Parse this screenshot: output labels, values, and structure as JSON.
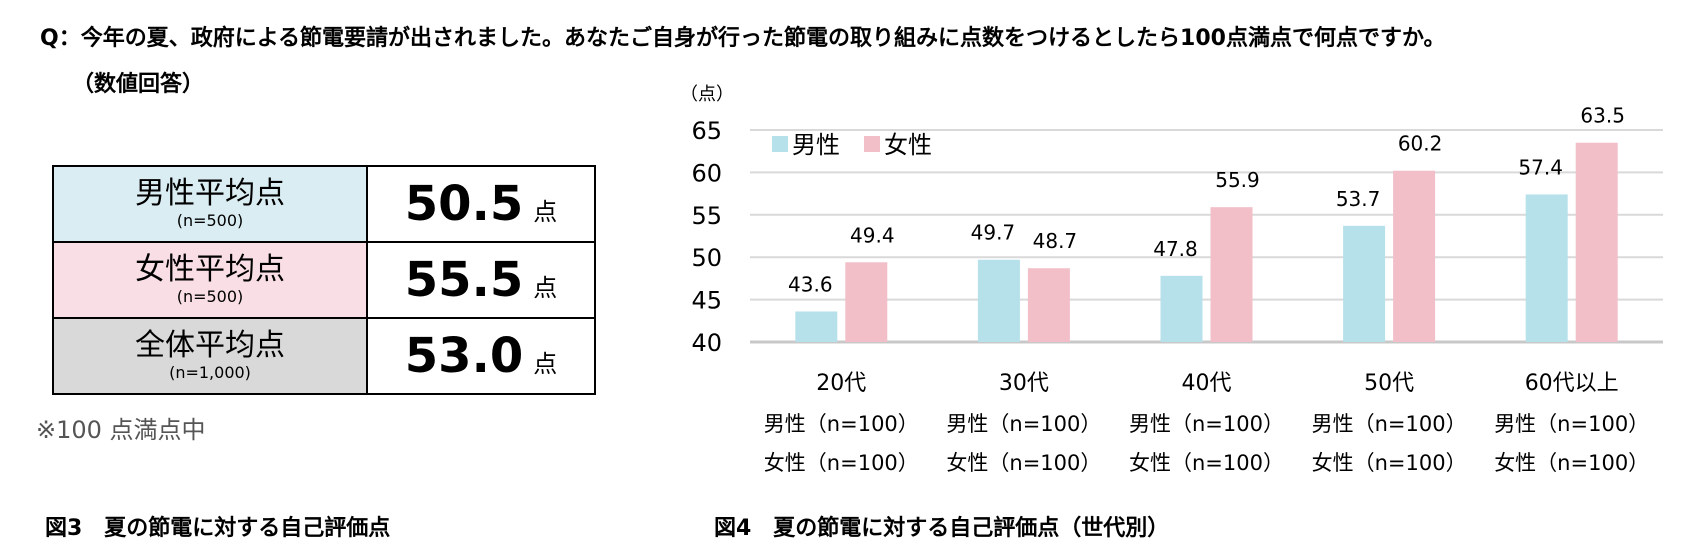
{
  "question": {
    "line1": "Q：今年の夏、政府による節電要請が出されました。あなたご自身が行った節電の取り組みに点数をつけるとしたら100点満点で何点ですか。",
    "line2": "（数値回答）"
  },
  "summary_table": {
    "rows": [
      {
        "label": "男性平均点",
        "n": "(n=500)",
        "value": "50.5",
        "unit": "点"
      },
      {
        "label": "女性平均点",
        "n": "(n=500)",
        "value": "55.5",
        "unit": "点"
      },
      {
        "label": "全体平均点",
        "n": "(n=1,000)",
        "value": "53.0",
        "unit": "点"
      }
    ]
  },
  "note": "※100 点満点中",
  "caption_fig3": "図3　夏の節電に対する自己評価点",
  "caption_fig4": "図4　夏の節電に対する自己評価点（世代別）",
  "colors": {
    "male": "#b6e0ea",
    "female": "#f2bfc9"
  },
  "chart_data": {
    "type": "bar",
    "title": "図4　夏の節電に対する自己評価点（世代別）",
    "ylabel": "（点）",
    "ylim": [
      40,
      65
    ],
    "yticks": [
      "40",
      "45",
      "50",
      "55",
      "60",
      "65"
    ],
    "grid": true,
    "legend_position": "top-left",
    "categories": [
      "20代",
      "30代",
      "40代",
      "50代",
      "60代以上"
    ],
    "category_sample_male": [
      "男性（n=100）",
      "男性（n=100）",
      "男性（n=100）",
      "男性（n=100）",
      "男性（n=100）"
    ],
    "category_sample_female": [
      "女性（n=100）",
      "女性（n=100）",
      "女性（n=100）",
      "女性（n=100）",
      "女性（n=100）"
    ],
    "series": [
      {
        "name": "男性",
        "values": [
          43.6,
          49.7,
          47.8,
          53.7,
          57.4
        ],
        "labels": [
          "43.6",
          "49.7",
          "47.8",
          "53.7",
          "57.4"
        ]
      },
      {
        "name": "女性",
        "values": [
          49.4,
          48.7,
          55.9,
          60.2,
          63.5
        ],
        "labels": [
          "49.4",
          "48.7",
          "55.9",
          "60.2",
          "63.5"
        ]
      }
    ]
  }
}
